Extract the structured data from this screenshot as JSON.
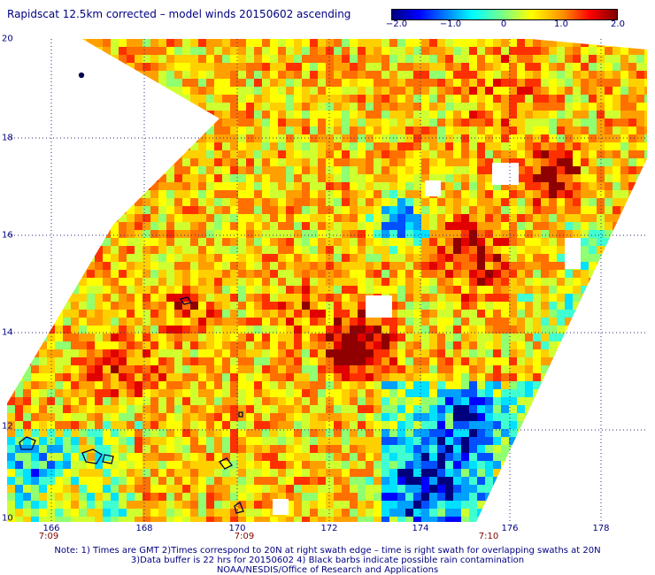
{
  "title": "Rapidscat 12.5km corrected – model winds 20150602 ascending",
  "colorbar": {
    "ticks": [
      {
        "label": "−2.0",
        "value": -2.0
      },
      {
        "label": "−1.0",
        "value": -1.0
      },
      {
        "label": "0",
        "value": 0
      },
      {
        "label": "1.0",
        "value": 1.0
      },
      {
        "label": "2.0",
        "value": 2.0
      }
    ],
    "range": [
      -2.0,
      2.0
    ]
  },
  "axes": {
    "lat_labels": [
      "20",
      "18",
      "16",
      "14",
      "12",
      "10"
    ],
    "lon_labels": [
      "166",
      "168",
      "170",
      "172",
      "174",
      "176",
      "178"
    ],
    "times": [
      "7:09",
      "7:09",
      "7:10"
    ]
  },
  "notes": [
    "Note: 1) Times are GMT 2)Times correspond to 20N at right swath edge – time is right swath for overlapping swaths at 20N",
    "3)Data buffer is 22 hrs for 20150602 4) Black barbs indicate possible rain contamination",
    "NOAA/NESDIS/Office of Research and Applications"
  ],
  "colors": {
    "text": "#000080",
    "time_text": "#800000",
    "coastline": "#000040"
  }
}
